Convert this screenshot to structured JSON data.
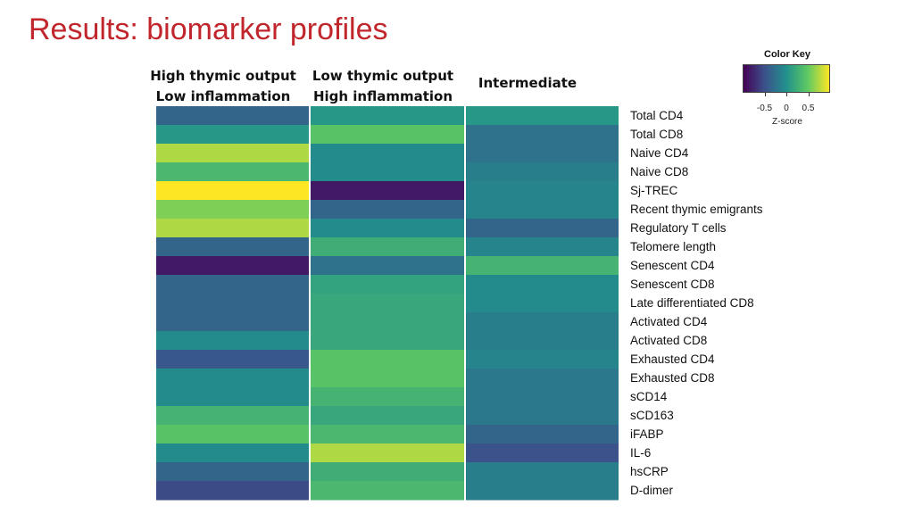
{
  "slide": {
    "title": "Results: biomarker profiles"
  },
  "chart_data": {
    "type": "heatmap",
    "title": "",
    "xlabel": "",
    "ylabel": "",
    "columns": [
      {
        "line1": "High thymic output",
        "line2": "Low inflammation"
      },
      {
        "line1": "Low thymic output",
        "line2": "High inflammation"
      },
      {
        "line1": "Intermediate",
        "line2": ""
      }
    ],
    "rows": [
      "Total CD4",
      "Total CD8",
      "Naive CD4",
      "Naive CD8",
      "Sj-TREC",
      "Recent thymic emigrants",
      "Regulatory T cells",
      "Telomere length",
      "Senescent CD4",
      "Senescent CD8",
      "Late differentiated CD8",
      "Activated CD4",
      "Activated CD8",
      "Exhausted CD4",
      "Exhausted CD8",
      "sCD14",
      "sCD163",
      "iFABP",
      "IL-6",
      "hsCRP",
      "D-dimer"
    ],
    "values": [
      [
        -0.35,
        0.05,
        0.05
      ],
      [
        0.05,
        0.45,
        -0.25
      ],
      [
        0.75,
        -0.05,
        -0.25
      ],
      [
        0.35,
        -0.05,
        -0.15
      ],
      [
        1.0,
        -0.85,
        -0.1
      ],
      [
        0.6,
        -0.35,
        -0.1
      ],
      [
        0.75,
        -0.05,
        -0.35
      ],
      [
        -0.35,
        0.25,
        -0.1
      ],
      [
        -0.85,
        -0.25,
        0.3
      ],
      [
        -0.35,
        0.15,
        -0.05
      ],
      [
        -0.35,
        0.2,
        -0.05
      ],
      [
        -0.35,
        0.2,
        -0.15
      ],
      [
        -0.05,
        0.2,
        -0.15
      ],
      [
        -0.45,
        0.45,
        -0.1
      ],
      [
        -0.05,
        0.45,
        -0.2
      ],
      [
        -0.05,
        0.3,
        -0.2
      ],
      [
        0.3,
        0.2,
        -0.2
      ],
      [
        0.45,
        0.35,
        -0.35
      ],
      [
        -0.05,
        0.75,
        -0.5
      ],
      [
        -0.35,
        0.25,
        -0.15
      ],
      [
        -0.55,
        0.35,
        -0.15
      ]
    ],
    "color_key": {
      "title": "Color Key",
      "xlabel": "Z-score",
      "range": [
        -1.0,
        1.0
      ],
      "ticks": [
        -0.5,
        0,
        0.5
      ],
      "colormap": [
        "#440154",
        "#3b528b",
        "#21918c",
        "#5ec962",
        "#fde725"
      ]
    },
    "grid": false,
    "legend_position": "top-right"
  }
}
